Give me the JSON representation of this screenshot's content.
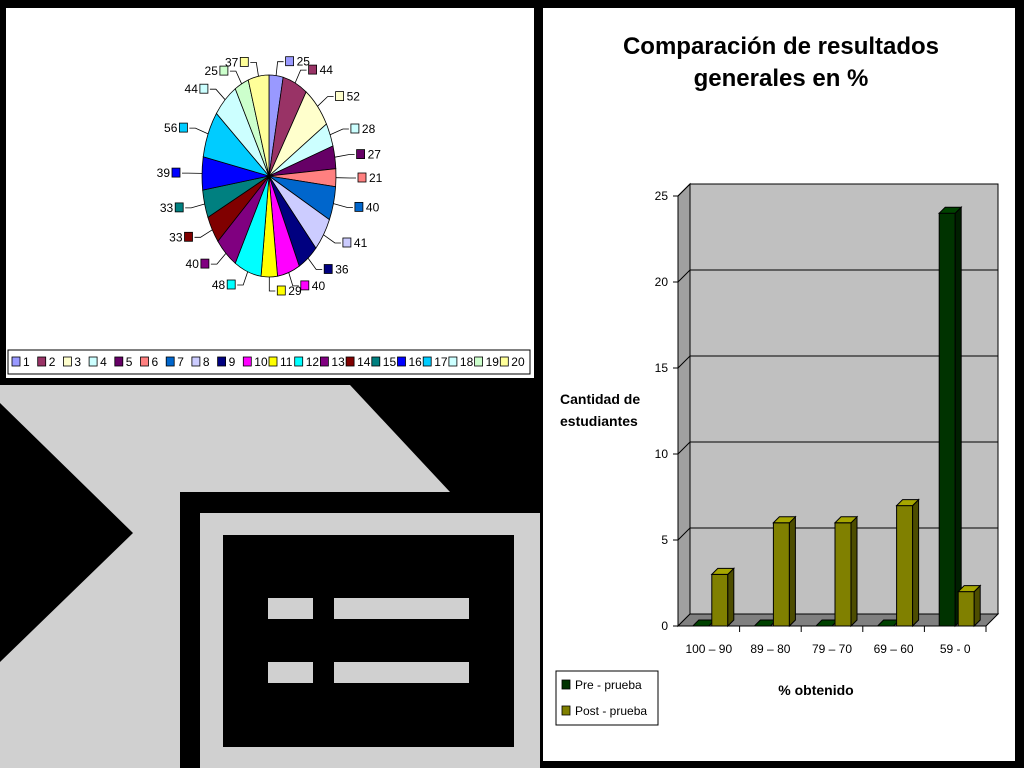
{
  "chart_data": [
    {
      "type": "pie",
      "categories": [
        "1",
        "2",
        "3",
        "4",
        "5",
        "6",
        "7",
        "8",
        "9",
        "10",
        "11",
        "12",
        "13",
        "14",
        "15",
        "16",
        "17",
        "18",
        "19",
        "20"
      ],
      "values": [
        25,
        44,
        52,
        28,
        27,
        21,
        40,
        41,
        36,
        40,
        29,
        48,
        40,
        33,
        33,
        39,
        56,
        44,
        25,
        37
      ],
      "colors": [
        "#9999ff",
        "#993366",
        "#ffffcc",
        "#ccffff",
        "#660066",
        "#ff8080",
        "#0066cc",
        "#ccccff",
        "#000080",
        "#ff00ff",
        "#ffff00",
        "#00ffff",
        "#800080",
        "#800000",
        "#008080",
        "#0000ff",
        "#00ccff",
        "#ccffff",
        "#ccffcc",
        "#ffff99"
      ],
      "legend_position": "bottom"
    },
    {
      "type": "bar",
      "title_line1": "Comparación de resultados",
      "title_line2": "generales en %",
      "ylabel_line1": "Cantidad de",
      "ylabel_line2": "estudiantes",
      "xlabel": "% obtenido",
      "categories": [
        "100 – 90",
        "89 – 80",
        "79 – 70",
        "69 – 60",
        "59 - 0"
      ],
      "series": [
        {
          "name": "Pre - prueba",
          "values": [
            0,
            0,
            0,
            0,
            24
          ],
          "color": "#003300"
        },
        {
          "name": "Post - prueba",
          "values": [
            3,
            6,
            6,
            7,
            2
          ],
          "color": "#808000"
        }
      ],
      "ylim": [
        0,
        25
      ],
      "yticks": [
        "0",
        "5",
        "10",
        "15",
        "20",
        "25"
      ],
      "grid": true,
      "legend_position": "bottom-left"
    }
  ]
}
